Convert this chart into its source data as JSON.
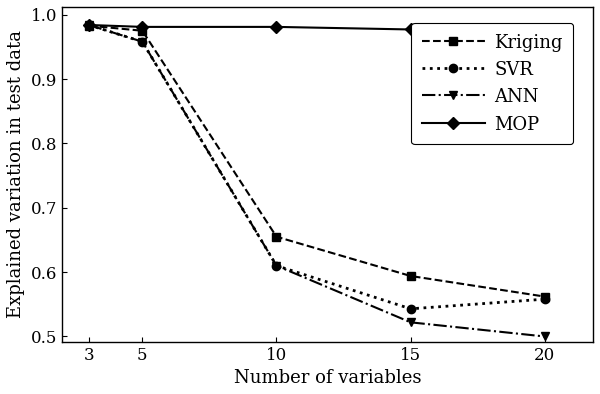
{
  "x": [
    3,
    5,
    10,
    15,
    20
  ],
  "kriging": [
    0.983,
    0.975,
    0.655,
    0.594,
    0.562
  ],
  "svr": [
    0.984,
    0.958,
    0.61,
    0.543,
    0.558
  ],
  "ann": [
    0.984,
    0.958,
    0.61,
    0.522,
    0.5
  ],
  "mop": [
    0.984,
    0.981,
    0.981,
    0.977,
    0.977
  ],
  "xlabel": "Number of variables",
  "ylabel": "Explained variation in test data",
  "ylim": [
    0.492,
    1.012
  ],
  "yticks": [
    0.5,
    0.6,
    0.7,
    0.8,
    0.9,
    1.0
  ],
  "xticks": [
    3,
    5,
    10,
    15,
    20
  ],
  "legend_labels": [
    "Kriging",
    "SVR",
    "ANN",
    "MOP"
  ],
  "line_color": "#000000",
  "bg_color": "#ffffff",
  "label_fontsize": 13,
  "tick_fontsize": 12,
  "legend_fontsize": 13
}
